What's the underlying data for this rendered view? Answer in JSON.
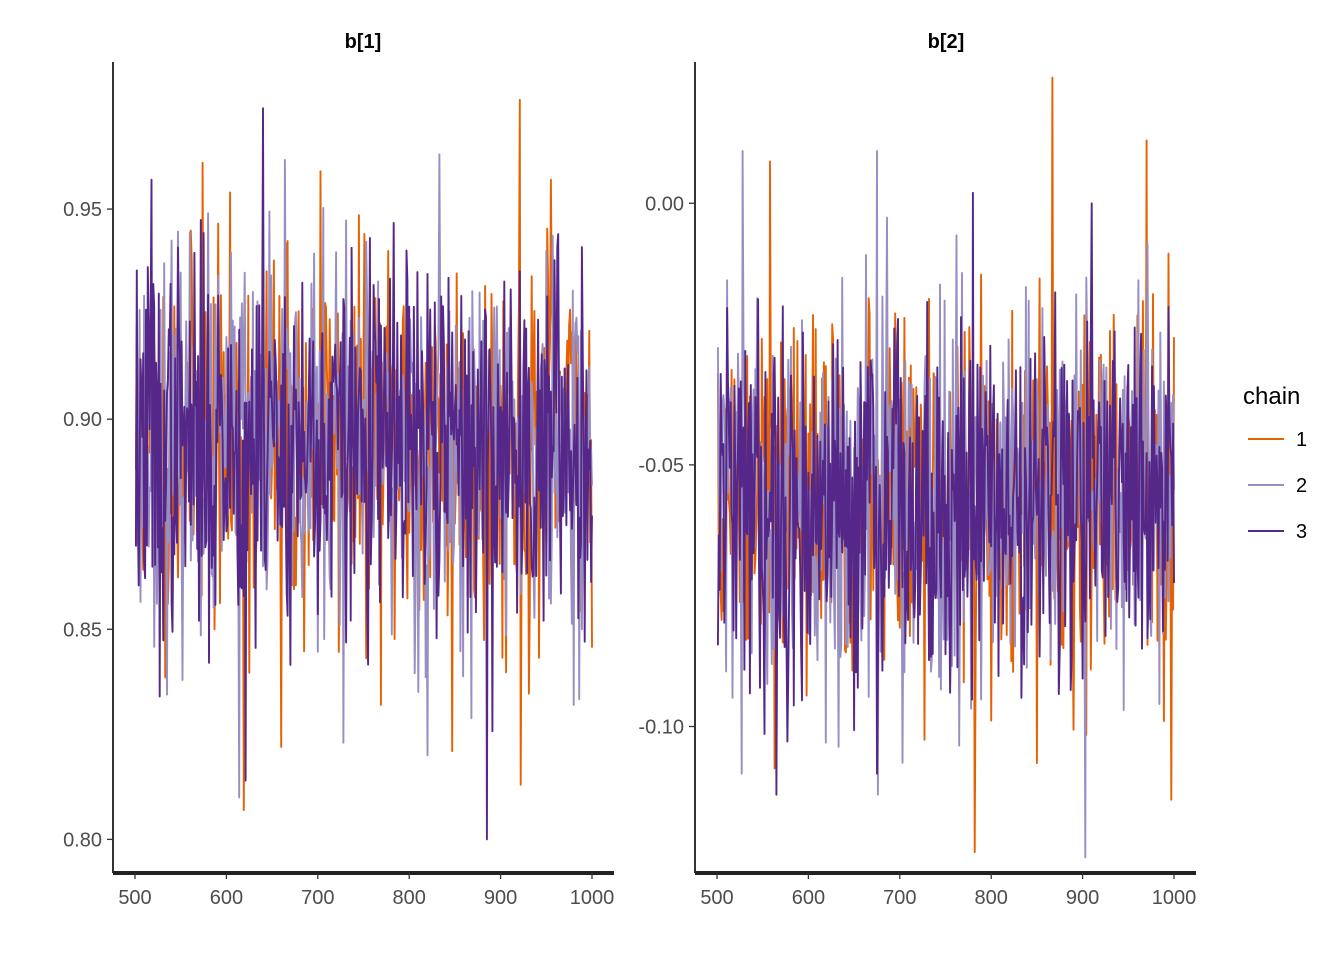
{
  "chart_data": [
    {
      "type": "line",
      "title": "b[1]",
      "xlabel": "",
      "ylabel": "",
      "xlim": [
        500,
        1000
      ],
      "ylim": [
        0.792,
        0.985
      ],
      "x_ticks": [
        500,
        600,
        700,
        800,
        900,
        1000
      ],
      "x_tick_labels": [
        "500",
        "600",
        "700",
        "800",
        "900",
        "1000"
      ],
      "y_ticks": [
        0.8,
        0.85,
        0.9,
        0.95
      ],
      "y_tick_labels": [
        "0.80",
        "0.85",
        "0.90",
        "0.95"
      ],
      "grid": false,
      "trace": {
        "x_start": 501,
        "x_end": 1000,
        "mean": 0.894,
        "sd": 0.022
      },
      "series": [
        {
          "name": "1",
          "color": "#e66101",
          "seed": 11,
          "extremes": [
            {
              "x": 574,
              "y": 0.961
            },
            {
              "x": 619,
              "y": 0.807
            },
            {
              "x": 921,
              "y": 0.976
            },
            {
              "x": 922,
              "y": 0.813
            },
            {
              "x": 955,
              "y": 0.957
            },
            {
              "x": 660,
              "y": 0.822
            },
            {
              "x": 703,
              "y": 0.959
            },
            {
              "x": 847,
              "y": 0.821
            }
          ]
        },
        {
          "name": "2",
          "color": "#998ec3",
          "seed": 23,
          "extremes": [
            {
              "x": 614,
              "y": 0.81
            },
            {
              "x": 833,
              "y": 0.963
            },
            {
              "x": 820,
              "y": 0.82
            },
            {
              "x": 728,
              "y": 0.823
            },
            {
              "x": 980,
              "y": 0.832
            }
          ]
        },
        {
          "name": "3",
          "color": "#542788",
          "seed": 37,
          "extremes": [
            {
              "x": 640,
              "y": 0.974
            },
            {
              "x": 885,
              "y": 0.8
            },
            {
              "x": 621,
              "y": 0.814
            },
            {
              "x": 527,
              "y": 0.834
            },
            {
              "x": 518,
              "y": 0.957
            }
          ]
        }
      ]
    },
    {
      "type": "line",
      "title": "b[2]",
      "xlabel": "",
      "ylabel": "",
      "xlim": [
        500,
        1000
      ],
      "ylim": [
        -0.128,
        0.027
      ],
      "x_ticks": [
        500,
        600,
        700,
        800,
        900,
        1000
      ],
      "x_tick_labels": [
        "500",
        "600",
        "700",
        "800",
        "900",
        "1000"
      ],
      "y_ticks": [
        -0.1,
        -0.05,
        0.0
      ],
      "y_tick_labels": [
        "-0.10",
        "-0.05",
        "0.00"
      ],
      "grid": false,
      "trace": {
        "x_start": 501,
        "x_end": 1000,
        "mean": -0.057,
        "sd": 0.018
      },
      "series": [
        {
          "name": "1",
          "color": "#e66101",
          "seed": 51,
          "extremes": [
            {
              "x": 867,
              "y": 0.024
            },
            {
              "x": 782,
              "y": -0.124
            },
            {
              "x": 997,
              "y": -0.114
            },
            {
              "x": 970,
              "y": 0.012
            },
            {
              "x": 558,
              "y": 0.008
            },
            {
              "x": 563,
              "y": -0.108
            },
            {
              "x": 850,
              "y": -0.107
            }
          ]
        },
        {
          "name": "2",
          "color": "#998ec3",
          "seed": 63,
          "extremes": [
            {
              "x": 903,
              "y": -0.125
            },
            {
              "x": 528,
              "y": 0.01
            },
            {
              "x": 675,
              "y": 0.01
            },
            {
              "x": 676,
              "y": -0.113
            },
            {
              "x": 527,
              "y": -0.109
            }
          ]
        },
        {
          "name": "3",
          "color": "#542788",
          "seed": 79,
          "extremes": [
            {
              "x": 675,
              "y": -0.109
            },
            {
              "x": 910,
              "y": 0.0
            },
            {
              "x": 780,
              "y": 0.002
            },
            {
              "x": 593,
              "y": -0.095
            }
          ]
        }
      ]
    }
  ],
  "legend": {
    "title": "chain",
    "entries": [
      {
        "label": "1",
        "color": "#e66101"
      },
      {
        "label": "2",
        "color": "#998ec3"
      },
      {
        "label": "3",
        "color": "#542788"
      }
    ]
  }
}
